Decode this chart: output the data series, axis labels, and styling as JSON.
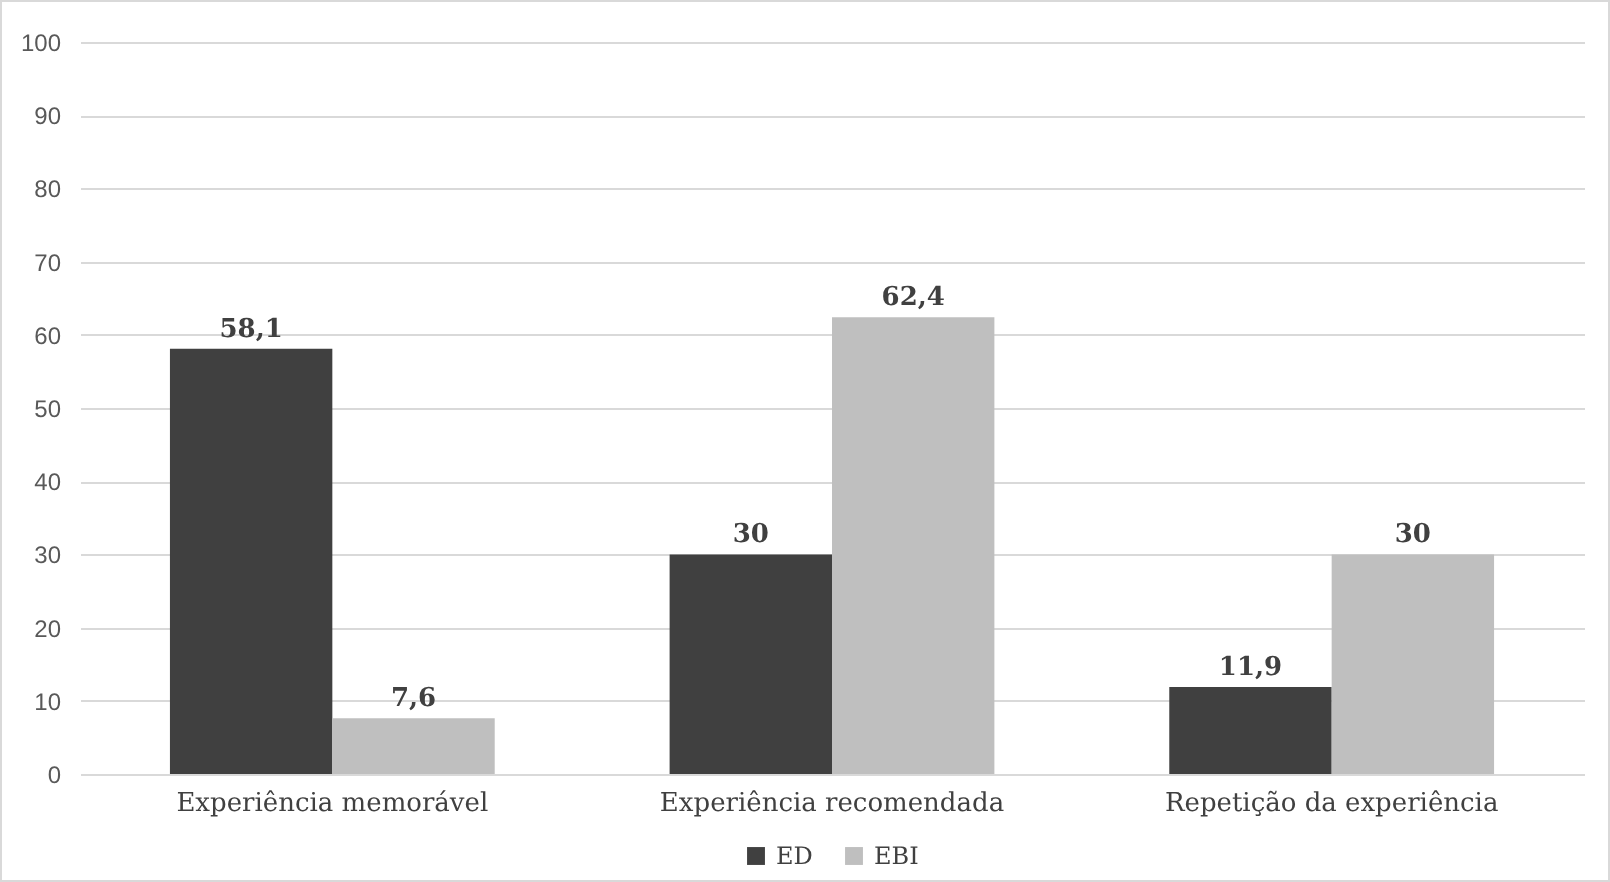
{
  "chart_data": {
    "type": "bar",
    "categories": [
      "Experiência memorável",
      "Experiência recomendada",
      "Repetição da experiência"
    ],
    "series": [
      {
        "name": "ED",
        "color": "#404040",
        "values": [
          58.1,
          30,
          11.9
        ],
        "value_labels": [
          "58,1",
          "30",
          "11,9"
        ]
      },
      {
        "name": "EBI",
        "color": "#bfbfbf",
        "values": [
          7.6,
          62.4,
          30
        ],
        "value_labels": [
          "7,6",
          "62,4",
          "30"
        ]
      }
    ],
    "ylim": [
      0,
      100
    ],
    "yticks": [
      0,
      10,
      20,
      30,
      40,
      50,
      60,
      70,
      80,
      90,
      100
    ],
    "grid": "y",
    "legend": "bottom"
  }
}
